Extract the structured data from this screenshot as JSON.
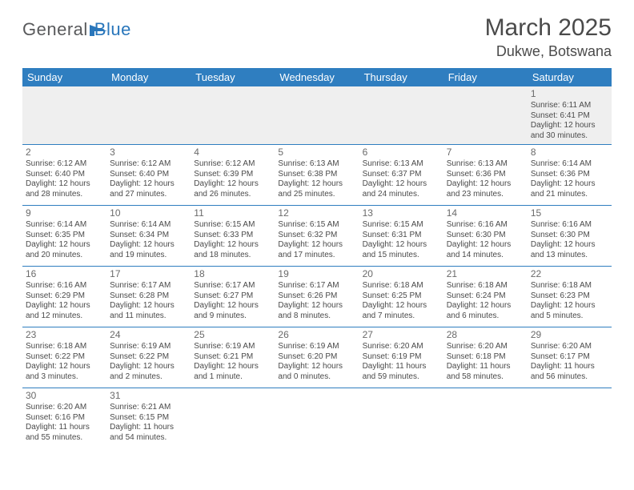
{
  "logo": {
    "text1": "General",
    "text2": "Blue"
  },
  "title": "March 2025",
  "location": "Dukwe, Botswana",
  "weekday_bg": "#2f7ec0",
  "weekdays": [
    "Sunday",
    "Monday",
    "Tuesday",
    "Wednesday",
    "Thursday",
    "Friday",
    "Saturday"
  ],
  "weeks": [
    [
      null,
      null,
      null,
      null,
      null,
      null,
      {
        "n": "1",
        "sr": "6:11 AM",
        "ss": "6:41 PM",
        "dl": "12 hours and 30 minutes."
      }
    ],
    [
      {
        "n": "2",
        "sr": "6:12 AM",
        "ss": "6:40 PM",
        "dl": "12 hours and 28 minutes."
      },
      {
        "n": "3",
        "sr": "6:12 AM",
        "ss": "6:40 PM",
        "dl": "12 hours and 27 minutes."
      },
      {
        "n": "4",
        "sr": "6:12 AM",
        "ss": "6:39 PM",
        "dl": "12 hours and 26 minutes."
      },
      {
        "n": "5",
        "sr": "6:13 AM",
        "ss": "6:38 PM",
        "dl": "12 hours and 25 minutes."
      },
      {
        "n": "6",
        "sr": "6:13 AM",
        "ss": "6:37 PM",
        "dl": "12 hours and 24 minutes."
      },
      {
        "n": "7",
        "sr": "6:13 AM",
        "ss": "6:36 PM",
        "dl": "12 hours and 23 minutes."
      },
      {
        "n": "8",
        "sr": "6:14 AM",
        "ss": "6:36 PM",
        "dl": "12 hours and 21 minutes."
      }
    ],
    [
      {
        "n": "9",
        "sr": "6:14 AM",
        "ss": "6:35 PM",
        "dl": "12 hours and 20 minutes."
      },
      {
        "n": "10",
        "sr": "6:14 AM",
        "ss": "6:34 PM",
        "dl": "12 hours and 19 minutes."
      },
      {
        "n": "11",
        "sr": "6:15 AM",
        "ss": "6:33 PM",
        "dl": "12 hours and 18 minutes."
      },
      {
        "n": "12",
        "sr": "6:15 AM",
        "ss": "6:32 PM",
        "dl": "12 hours and 17 minutes."
      },
      {
        "n": "13",
        "sr": "6:15 AM",
        "ss": "6:31 PM",
        "dl": "12 hours and 15 minutes."
      },
      {
        "n": "14",
        "sr": "6:16 AM",
        "ss": "6:30 PM",
        "dl": "12 hours and 14 minutes."
      },
      {
        "n": "15",
        "sr": "6:16 AM",
        "ss": "6:30 PM",
        "dl": "12 hours and 13 minutes."
      }
    ],
    [
      {
        "n": "16",
        "sr": "6:16 AM",
        "ss": "6:29 PM",
        "dl": "12 hours and 12 minutes."
      },
      {
        "n": "17",
        "sr": "6:17 AM",
        "ss": "6:28 PM",
        "dl": "12 hours and 11 minutes."
      },
      {
        "n": "18",
        "sr": "6:17 AM",
        "ss": "6:27 PM",
        "dl": "12 hours and 9 minutes."
      },
      {
        "n": "19",
        "sr": "6:17 AM",
        "ss": "6:26 PM",
        "dl": "12 hours and 8 minutes."
      },
      {
        "n": "20",
        "sr": "6:18 AM",
        "ss": "6:25 PM",
        "dl": "12 hours and 7 minutes."
      },
      {
        "n": "21",
        "sr": "6:18 AM",
        "ss": "6:24 PM",
        "dl": "12 hours and 6 minutes."
      },
      {
        "n": "22",
        "sr": "6:18 AM",
        "ss": "6:23 PM",
        "dl": "12 hours and 5 minutes."
      }
    ],
    [
      {
        "n": "23",
        "sr": "6:18 AM",
        "ss": "6:22 PM",
        "dl": "12 hours and 3 minutes."
      },
      {
        "n": "24",
        "sr": "6:19 AM",
        "ss": "6:22 PM",
        "dl": "12 hours and 2 minutes."
      },
      {
        "n": "25",
        "sr": "6:19 AM",
        "ss": "6:21 PM",
        "dl": "12 hours and 1 minute."
      },
      {
        "n": "26",
        "sr": "6:19 AM",
        "ss": "6:20 PM",
        "dl": "12 hours and 0 minutes."
      },
      {
        "n": "27",
        "sr": "6:20 AM",
        "ss": "6:19 PM",
        "dl": "11 hours and 59 minutes."
      },
      {
        "n": "28",
        "sr": "6:20 AM",
        "ss": "6:18 PM",
        "dl": "11 hours and 58 minutes."
      },
      {
        "n": "29",
        "sr": "6:20 AM",
        "ss": "6:17 PM",
        "dl": "11 hours and 56 minutes."
      }
    ],
    [
      {
        "n": "30",
        "sr": "6:20 AM",
        "ss": "6:16 PM",
        "dl": "11 hours and 55 minutes."
      },
      {
        "n": "31",
        "sr": "6:21 AM",
        "ss": "6:15 PM",
        "dl": "11 hours and 54 minutes."
      },
      null,
      null,
      null,
      null,
      null
    ]
  ],
  "labels": {
    "sunrise": "Sunrise:",
    "sunset": "Sunset:",
    "daylight": "Daylight:"
  }
}
